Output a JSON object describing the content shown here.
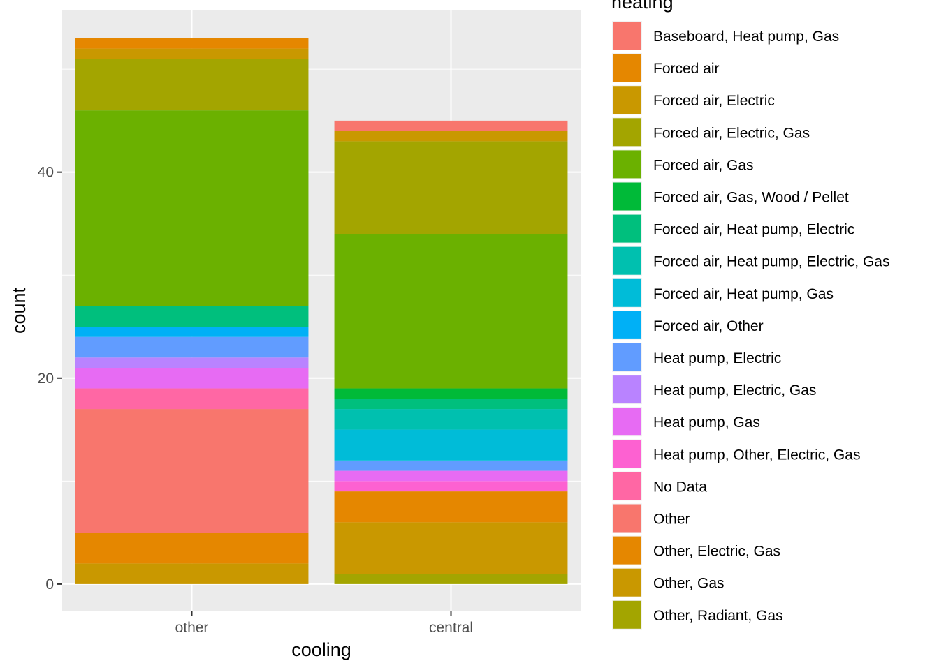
{
  "chart_data": {
    "type": "bar",
    "stacked": true,
    "xlabel": "cooling",
    "ylabel": "count",
    "categories": [
      "other",
      "central"
    ],
    "yticks": [
      0,
      20,
      40
    ],
    "ylim": [
      -2.65,
      55.7
    ],
    "grid": true,
    "legend_title": "heating",
    "legend_position": "right",
    "series": [
      {
        "name": "Baseboard, Heat pump, Gas",
        "color": "#F8766D",
        "values": [
          0,
          1
        ]
      },
      {
        "name": "Forced air",
        "color": "#E58700",
        "values": [
          1,
          0
        ]
      },
      {
        "name": "Forced air, Electric",
        "color": "#C99800",
        "values": [
          1,
          1
        ]
      },
      {
        "name": "Forced air, Electric, Gas",
        "color": "#A3A500",
        "values": [
          5,
          9
        ]
      },
      {
        "name": "Forced air, Gas",
        "color": "#6BB100",
        "values": [
          19,
          15
        ]
      },
      {
        "name": "Forced air, Gas, Wood / Pellet",
        "color": "#00BA38",
        "values": [
          0,
          1
        ]
      },
      {
        "name": "Forced air, Heat pump, Electric",
        "color": "#00BF7D",
        "values": [
          2,
          1
        ]
      },
      {
        "name": "Forced air, Heat pump, Electric, Gas",
        "color": "#00C0AF",
        "values": [
          0,
          2
        ]
      },
      {
        "name": "Forced air, Heat pump, Gas",
        "color": "#00BCD8",
        "values": [
          0,
          3
        ]
      },
      {
        "name": "Forced air, Other",
        "color": "#00B0F6",
        "values": [
          1,
          0
        ]
      },
      {
        "name": "Heat pump, Electric",
        "color": "#619CFF",
        "values": [
          2,
          1
        ]
      },
      {
        "name": "Heat pump, Electric, Gas",
        "color": "#B983FF",
        "values": [
          1,
          0
        ]
      },
      {
        "name": "Heat pump, Gas",
        "color": "#E76BF3",
        "values": [
          2,
          1
        ]
      },
      {
        "name": "Heat pump, Other, Electric, Gas",
        "color": "#FD61D1",
        "values": [
          0,
          1
        ]
      },
      {
        "name": "No Data",
        "color": "#FF67A4",
        "values": [
          2,
          0
        ]
      },
      {
        "name": "Other",
        "color": "#F8766D",
        "values": [
          12,
          0
        ]
      },
      {
        "name": "Other, Electric, Gas",
        "color": "#E58700",
        "values": [
          3,
          3
        ]
      },
      {
        "name": "Other, Gas",
        "color": "#C99800",
        "values": [
          2,
          5
        ]
      },
      {
        "name": "Other, Radiant, Gas",
        "color": "#A3A500",
        "values": [
          0,
          1
        ]
      }
    ],
    "legend_colors": [
      "#F8766D",
      "#E58700",
      "#C99800",
      "#A3A500",
      "#6BB100",
      "#00BA38",
      "#00BF7D",
      "#00C0AF",
      "#00BCD8",
      "#00B0F6",
      "#619CFF",
      "#B983FF",
      "#E76BF3",
      "#FD61D1",
      "#FF67A4",
      "#F8766D",
      "#E58700",
      "#C99800",
      "#A3A500"
    ]
  }
}
